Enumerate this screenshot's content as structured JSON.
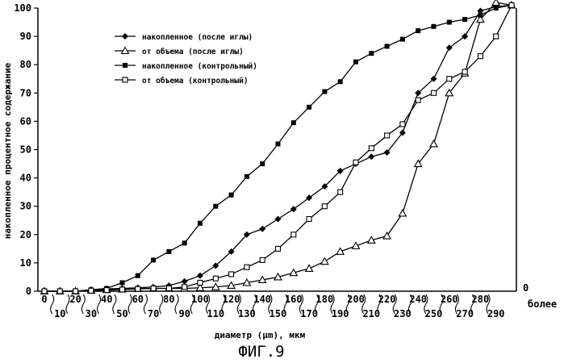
{
  "chart_data": {
    "type": "line",
    "title": "",
    "xlabel": "диаметр (µm), мкм",
    "ylabel": "накопленное процентное содержание",
    "caption": "ФИГ.9",
    "ylim": [
      0,
      100
    ],
    "y_ticks": [
      "0",
      "10",
      "20",
      "30",
      "40",
      "50",
      "60",
      "70",
      "80",
      "90",
      "100"
    ],
    "right_axis_label": "0",
    "categories": [
      "0",
      "10",
      "20",
      "30",
      "40",
      "50",
      "60",
      "70",
      "80",
      "90",
      "100",
      "110",
      "120",
      "130",
      "140",
      "150",
      "160",
      "170",
      "180",
      "190",
      "200",
      "210",
      "220",
      "230",
      "240",
      "250",
      "260",
      "270",
      "280",
      "290",
      "более"
    ],
    "grid": false,
    "legend_position": "top-left",
    "series": [
      {
        "name": "накопленное (после иглы)",
        "marker": "diamond-filled",
        "values": [
          0,
          0,
          0,
          0.5,
          0.8,
          1,
          1.2,
          1.5,
          2,
          3.5,
          5.5,
          9,
          14,
          20,
          22,
          25.5,
          29,
          33,
          37,
          42.5,
          45,
          47.5,
          49,
          56,
          70,
          75,
          86,
          90,
          99,
          100.5,
          101
        ]
      },
      {
        "name": "от объема (после иглы)",
        "marker": "triangle-open",
        "values": [
          0,
          0,
          0,
          0.3,
          0.5,
          0.7,
          0.9,
          1,
          1,
          1,
          1.2,
          1.5,
          2,
          3,
          4,
          5,
          6.5,
          8,
          10.5,
          14,
          16,
          18,
          19.5,
          27.5,
          45,
          52,
          70,
          77,
          96,
          102,
          101
        ]
      },
      {
        "name": "накопленное (контрольный)",
        "marker": "square-filled",
        "values": [
          0,
          0,
          0,
          0.5,
          1,
          3,
          5.5,
          11,
          14,
          17,
          24,
          30,
          34,
          40.5,
          45,
          52,
          59.5,
          65,
          70.5,
          74,
          81,
          84,
          86.5,
          89,
          92,
          93.5,
          95,
          96,
          97.5,
          100,
          101
        ]
      },
      {
        "name": "от объема (контрольный)",
        "marker": "square-open",
        "values": [
          0,
          0,
          0,
          0.2,
          0.4,
          0.6,
          0.8,
          1,
          1,
          1.5,
          3,
          4.5,
          6,
          8.5,
          11,
          15,
          20,
          25.5,
          30,
          35,
          45.5,
          50.5,
          55,
          59,
          67.5,
          70,
          75,
          77.5,
          83,
          90,
          101
        ]
      }
    ]
  }
}
